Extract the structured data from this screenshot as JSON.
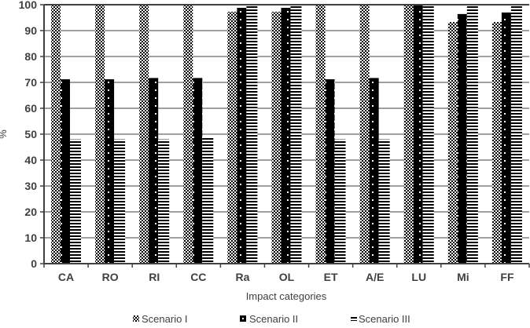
{
  "chart_data": {
    "type": "bar",
    "title": "",
    "xlabel": "Impact categories",
    "ylabel": "%",
    "ylim": [
      0,
      100
    ],
    "yticks": [
      0,
      10,
      20,
      30,
      40,
      50,
      60,
      70,
      80,
      90,
      100
    ],
    "grid": true,
    "legend_position": "bottom",
    "categories": [
      "CA",
      "RO",
      "RI",
      "CC",
      "Ra",
      "OL",
      "ET",
      "A/E",
      "LU",
      "Mi",
      "FF"
    ],
    "series": [
      {
        "name": "Scenario I",
        "pattern": "checker",
        "values": [
          100,
          100,
          100,
          100,
          97.3,
          97.3,
          100,
          100,
          100,
          93.3,
          93.3
        ]
      },
      {
        "name": "Scenario II",
        "pattern": "black-dotted",
        "values": [
          71.2,
          71.2,
          71.7,
          71.7,
          98.8,
          98.8,
          71.2,
          71.7,
          100,
          96.4,
          97.0
        ]
      },
      {
        "name": "Scenario III",
        "pattern": "horizontal-stripes",
        "values": [
          48.0,
          48.0,
          48.0,
          48.8,
          100,
          100,
          48.0,
          48.0,
          100,
          100,
          100
        ]
      }
    ]
  },
  "legend": {
    "items": [
      {
        "label": "Scenario I",
        "icon": "checker-swatch-icon"
      },
      {
        "label": "Scenario II",
        "icon": "black-dotted-swatch-icon"
      },
      {
        "label": "Scenario III",
        "icon": "striped-swatch-icon"
      }
    ]
  },
  "colors": {
    "axis": "#404040",
    "grid": "#808080",
    "bar_fill": "#000000",
    "background": "#ffffff"
  }
}
